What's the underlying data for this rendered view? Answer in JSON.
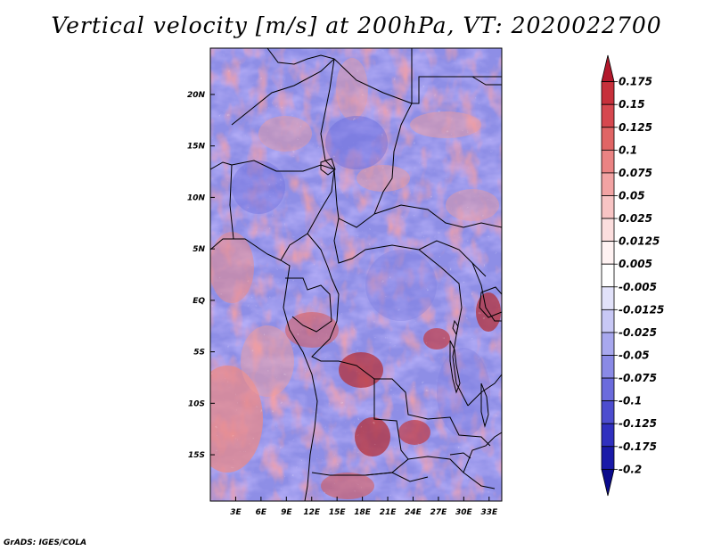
{
  "title": "Vertical velocity [m/s] at 200hPa, VT: 2020022700",
  "credit": "GrADS: IGES/COLA",
  "map": {
    "lat_labels": [
      "20N",
      "15N",
      "10N",
      "5N",
      "EQ",
      "5S",
      "10S",
      "15S"
    ],
    "lon_labels": [
      "3E",
      "6E",
      "9E",
      "12E",
      "15E",
      "18E",
      "21E",
      "24E",
      "27E",
      "30E",
      "33E"
    ]
  },
  "colorbar": {
    "labels": [
      "0.175",
      "0.15",
      "0.125",
      "0.1",
      "0.075",
      "0.05",
      "0.025",
      "0.0125",
      "0.005",
      "-0.005",
      "-0.0125",
      "-0.025",
      "-0.05",
      "-0.075",
      "-0.1",
      "-0.125",
      "-0.175",
      "-0.2"
    ],
    "colors": [
      "#b2182b",
      "#c7303b",
      "#d6484f",
      "#e06565",
      "#ea8383",
      "#f2a3a3",
      "#f8c4c4",
      "#fcdede",
      "#fff2f2",
      "#ffffff",
      "#e2e2fa",
      "#c8c8f5",
      "#a8a8ee",
      "#8a8ae6",
      "#6b6bdc",
      "#4d4dcf",
      "#3030bf",
      "#1a1aa8",
      "#0a0a8c"
    ]
  },
  "chart_data": {
    "type": "heatmap",
    "title": "Vertical velocity [m/s] at 200hPa, VT: 2020022700",
    "variable": "Vertical velocity",
    "units": "m/s",
    "level": "200hPa",
    "valid_time": "2020022700",
    "lon_range": [
      0,
      34.5
    ],
    "lat_range": [
      -19.5,
      24.5
    ],
    "x_ticks": [
      "3E",
      "6E",
      "9E",
      "12E",
      "15E",
      "18E",
      "21E",
      "24E",
      "27E",
      "30E",
      "33E"
    ],
    "y_ticks": [
      "20N",
      "15N",
      "10N",
      "5N",
      "EQ",
      "5S",
      "10S",
      "15S"
    ],
    "color_levels": [
      -0.2,
      -0.175,
      -0.125,
      -0.1,
      -0.075,
      -0.05,
      -0.025,
      -0.0125,
      -0.005,
      0.005,
      0.0125,
      0.025,
      0.05,
      0.075,
      0.1,
      0.125,
      0.15,
      0.175
    ]
  }
}
